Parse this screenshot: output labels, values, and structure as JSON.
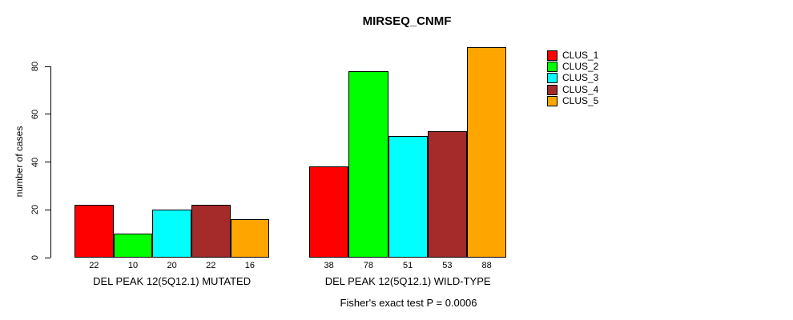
{
  "title": "MIRSEQ_CNMF",
  "y_axis": {
    "label": "number of cases",
    "tick_values": [
      0,
      20,
      40,
      60,
      80
    ]
  },
  "footer": "Fisher's exact test P = 0.0006",
  "legend": {
    "items": [
      {
        "label": "CLUS_1",
        "color": "#FF0000"
      },
      {
        "label": "CLUS_2",
        "color": "#00FF00"
      },
      {
        "label": "CLUS_3",
        "color": "#00FFFF"
      },
      {
        "label": "CLUS_4",
        "color": "#A52A2A"
      },
      {
        "label": "CLUS_5",
        "color": "#FFA500"
      }
    ]
  },
  "chart_data": {
    "type": "bar",
    "title": "MIRSEQ_CNMF",
    "xlabel": "",
    "ylabel": "number of cases",
    "ylim": [
      0,
      88
    ],
    "yticks": [
      0,
      20,
      40,
      60,
      80
    ],
    "grid": false,
    "legend_position": "right",
    "bar_value_labels_shown": true,
    "categories": [
      "DEL PEAK 12(5Q12.1) MUTATED",
      "DEL PEAK 12(5Q12.1) WILD-TYPE"
    ],
    "series": [
      {
        "name": "CLUS_1",
        "color": "#FF0000",
        "values": [
          22,
          38
        ]
      },
      {
        "name": "CLUS_2",
        "color": "#00FF00",
        "values": [
          10,
          78
        ]
      },
      {
        "name": "CLUS_3",
        "color": "#00FFFF",
        "values": [
          20,
          51
        ]
      },
      {
        "name": "CLUS_4",
        "color": "#A52A2A",
        "values": [
          22,
          53
        ]
      },
      {
        "name": "CLUS_5",
        "color": "#FFA500",
        "values": [
          16,
          88
        ]
      }
    ],
    "annotation": "Fisher's exact test P = 0.0006"
  }
}
